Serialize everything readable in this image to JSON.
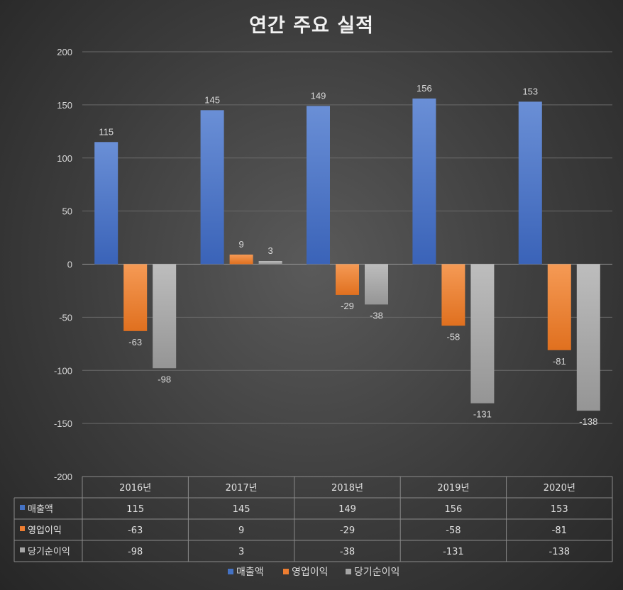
{
  "chart_data": {
    "type": "bar",
    "title": "연간 주요 실적",
    "categories": [
      "2016년",
      "2017년",
      "2018년",
      "2019년",
      "2020년"
    ],
    "series": [
      {
        "name": "매출액",
        "color": "#4472c4",
        "values": [
          115,
          145,
          149,
          156,
          153
        ]
      },
      {
        "name": "영업이익",
        "color": "#ed7d31",
        "values": [
          -63,
          9,
          -29,
          -58,
          -81
        ]
      },
      {
        "name": "당기순이익",
        "color": "#a5a5a5",
        "values": [
          -98,
          3,
          -38,
          -131,
          -138
        ]
      }
    ],
    "ylim": [
      -200,
      200
    ],
    "yticks": [
      200,
      150,
      100,
      50,
      0,
      -50,
      -100,
      -150,
      -200
    ],
    "grid": true,
    "legend": "bottom",
    "data_table": true
  }
}
